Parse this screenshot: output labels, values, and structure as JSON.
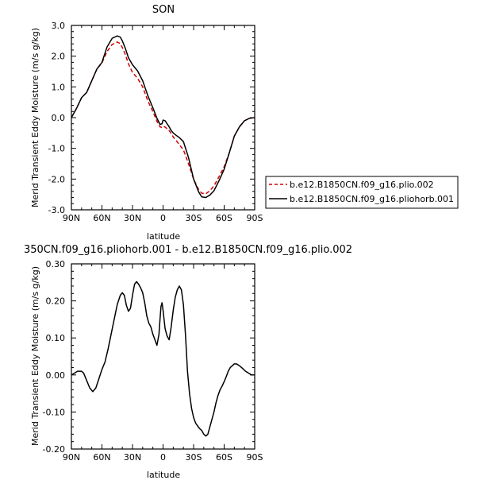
{
  "chart_data": [
    {
      "type": "line",
      "title": "SON",
      "xlabel": "latitude",
      "ylabel": "Merid Transient Eddy Moisture (m/s g/kg)",
      "xlim": [
        90,
        -90
      ],
      "ylim": [
        -3.0,
        3.0
      ],
      "x_ticks": [
        90,
        60,
        30,
        0,
        -30,
        -60,
        -90
      ],
      "x_tick_labels": [
        "90N",
        "60N",
        "30N",
        "0",
        "30S",
        "60S",
        "90S"
      ],
      "y_ticks": [
        -3.0,
        -2.0,
        -1.0,
        0.0,
        1.0,
        2.0,
        3.0
      ],
      "y_tick_labels": [
        "-3.0",
        "-2.0",
        "-1.0",
        "0.0",
        "1.0",
        "2.0",
        "3.0"
      ],
      "legend_position": "right",
      "series": [
        {
          "name": "b.e12.B1850CN.f09_g16.plio.002",
          "color": "#d40000",
          "style": "dashed",
          "x": [
            90,
            85,
            80,
            75,
            70,
            65,
            60,
            55,
            50,
            45,
            42,
            40,
            37,
            34,
            30,
            25,
            20,
            15,
            10,
            6,
            3,
            1,
            0,
            -2,
            -4,
            -6,
            -8,
            -10,
            -13,
            -16,
            -20,
            -25,
            -30,
            -35,
            -38,
            -42,
            -46,
            -50,
            -55,
            -60,
            -65,
            -70,
            -75,
            -80,
            -85,
            -90
          ],
          "y": [
            0.0,
            0.3,
            0.65,
            0.82,
            1.2,
            1.58,
            1.78,
            2.15,
            2.38,
            2.46,
            2.41,
            2.28,
            2.05,
            1.75,
            1.47,
            1.28,
            1.0,
            0.55,
            0.2,
            -0.12,
            -0.3,
            -0.32,
            -0.28,
            -0.31,
            -0.36,
            -0.42,
            -0.52,
            -0.63,
            -0.75,
            -0.88,
            -1.05,
            -1.5,
            -2.0,
            -2.35,
            -2.46,
            -2.48,
            -2.38,
            -2.22,
            -1.92,
            -1.6,
            -1.15,
            -0.6,
            -0.3,
            -0.1,
            -0.02,
            0.0
          ]
        },
        {
          "name": "b.e12.B1850CN.f09_g16.pliohorb.001",
          "color": "#000000",
          "style": "solid",
          "x": [
            90,
            85,
            80,
            75,
            70,
            65,
            60,
            55,
            50,
            45,
            42,
            40,
            37,
            34,
            30,
            25,
            20,
            15,
            10,
            6,
            3,
            1,
            0,
            -2,
            -4,
            -6,
            -8,
            -10,
            -13,
            -16,
            -20,
            -25,
            -30,
            -35,
            -38,
            -42,
            -46,
            -50,
            -55,
            -60,
            -65,
            -70,
            -75,
            -80,
            -85,
            -90
          ],
          "y": [
            0.0,
            0.3,
            0.65,
            0.82,
            1.2,
            1.58,
            1.8,
            2.3,
            2.58,
            2.66,
            2.62,
            2.5,
            2.25,
            1.95,
            1.72,
            1.52,
            1.2,
            0.72,
            0.32,
            -0.02,
            -0.22,
            -0.2,
            -0.08,
            -0.1,
            -0.2,
            -0.3,
            -0.42,
            -0.5,
            -0.58,
            -0.65,
            -0.78,
            -1.3,
            -2.0,
            -2.42,
            -2.58,
            -2.6,
            -2.52,
            -2.38,
            -2.05,
            -1.68,
            -1.15,
            -0.6,
            -0.3,
            -0.1,
            -0.02,
            0.0
          ]
        }
      ]
    },
    {
      "type": "line",
      "title": "350CN.f09_g16.pliohorb.001 - b.e12.B1850CN.f09_g16.plio.002",
      "xlabel": "latitude",
      "ylabel": "Merid Transient Eddy Moisture (m/s g/kg)",
      "xlim": [
        90,
        -90
      ],
      "ylim": [
        -0.2,
        0.3
      ],
      "x_ticks": [
        90,
        60,
        30,
        0,
        -30,
        -60,
        -90
      ],
      "x_tick_labels": [
        "90N",
        "60N",
        "30N",
        "0",
        "30S",
        "60S",
        "90S"
      ],
      "y_ticks": [
        -0.2,
        -0.1,
        0.0,
        0.1,
        0.2,
        0.3
      ],
      "y_tick_labels": [
        "-0.20",
        "-0.10",
        "0.00",
        "0.10",
        "0.20",
        "0.30"
      ],
      "series": [
        {
          "color": "#000000",
          "style": "solid",
          "x": [
            90,
            87,
            84,
            80,
            78,
            75,
            72,
            69,
            66,
            63,
            60,
            57,
            54,
            51,
            48,
            45,
            42,
            40,
            38,
            36,
            34,
            32,
            30,
            28,
            26,
            24,
            22,
            20,
            18,
            16,
            14,
            12,
            10,
            8,
            6,
            4,
            3,
            2,
            1,
            0,
            -1,
            -2,
            -4,
            -6,
            -8,
            -10,
            -12,
            -14,
            -16,
            -18,
            -20,
            -22,
            -24,
            -26,
            -28,
            -30,
            -32,
            -34,
            -36,
            -38,
            -40,
            -42,
            -44,
            -46,
            -48,
            -50,
            -52,
            -54,
            -56,
            -58,
            -60,
            -62,
            -64,
            -66,
            -68,
            -70,
            -72,
            -75,
            -78,
            -81,
            -84,
            -87,
            -90
          ],
          "y": [
            0.0,
            0.005,
            0.01,
            0.01,
            0.005,
            -0.015,
            -0.035,
            -0.045,
            -0.035,
            -0.01,
            0.015,
            0.035,
            0.07,
            0.11,
            0.15,
            0.19,
            0.215,
            0.222,
            0.215,
            0.188,
            0.172,
            0.18,
            0.215,
            0.245,
            0.252,
            0.245,
            0.235,
            0.222,
            0.195,
            0.16,
            0.14,
            0.13,
            0.11,
            0.095,
            0.08,
            0.11,
            0.15,
            0.185,
            0.195,
            0.175,
            0.15,
            0.125,
            0.105,
            0.095,
            0.13,
            0.175,
            0.21,
            0.23,
            0.24,
            0.23,
            0.19,
            0.11,
            0.01,
            -0.05,
            -0.09,
            -0.115,
            -0.13,
            -0.138,
            -0.145,
            -0.15,
            -0.16,
            -0.165,
            -0.16,
            -0.14,
            -0.12,
            -0.1,
            -0.075,
            -0.055,
            -0.04,
            -0.03,
            -0.018,
            -0.005,
            0.01,
            0.02,
            0.025,
            0.03,
            0.03,
            0.025,
            0.018,
            0.01,
            0.005,
            0.0,
            0.0
          ]
        }
      ]
    }
  ]
}
